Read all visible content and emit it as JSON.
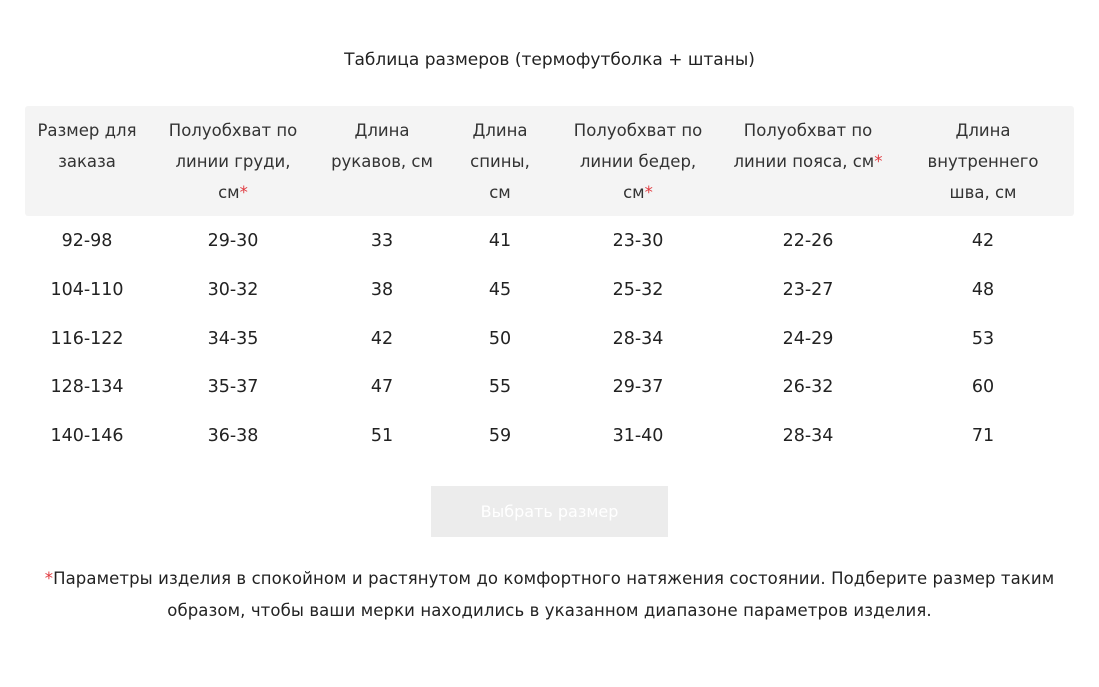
{
  "title": "Таблица размеров (термофутболка + штаны)",
  "table": {
    "headers": [
      {
        "text": "Размер для заказа"
      },
      {
        "text": "Полуобхват по линии груди, см",
        "mark": "*"
      },
      {
        "text": "Длина рукавов, см"
      },
      {
        "text": "Длина спины, см"
      },
      {
        "text": "Полуобхват по линии бедер, см",
        "mark": "*"
      },
      {
        "text": "Полуобхват по линии пояса, см",
        "mark": "*"
      },
      {
        "text": "Длина внутреннего шва, см"
      }
    ],
    "rows": [
      [
        "92-98",
        "29-30",
        "33",
        "41",
        "23-30",
        "22-26",
        "42"
      ],
      [
        "104-110",
        "30-32",
        "38",
        "45",
        "25-32",
        "23-27",
        "48"
      ],
      [
        "116-122",
        "34-35",
        "42",
        "50",
        "28-34",
        "24-29",
        "53"
      ],
      [
        "128-134",
        "35-37",
        "47",
        "55",
        "29-37",
        "26-32",
        "60"
      ],
      [
        "140-146",
        "36-38",
        "51",
        "59",
        "31-40",
        "28-34",
        "71"
      ]
    ]
  },
  "button": {
    "label": "Выбрать размер"
  },
  "footnote": {
    "mark": "*",
    "text": "Параметры изделия в спокойном и растянутом до комфортного натяжения состоянии. Подберите размер таким образом, чтобы ваши мерки находились в указанном диапазоне параметров изделия."
  }
}
